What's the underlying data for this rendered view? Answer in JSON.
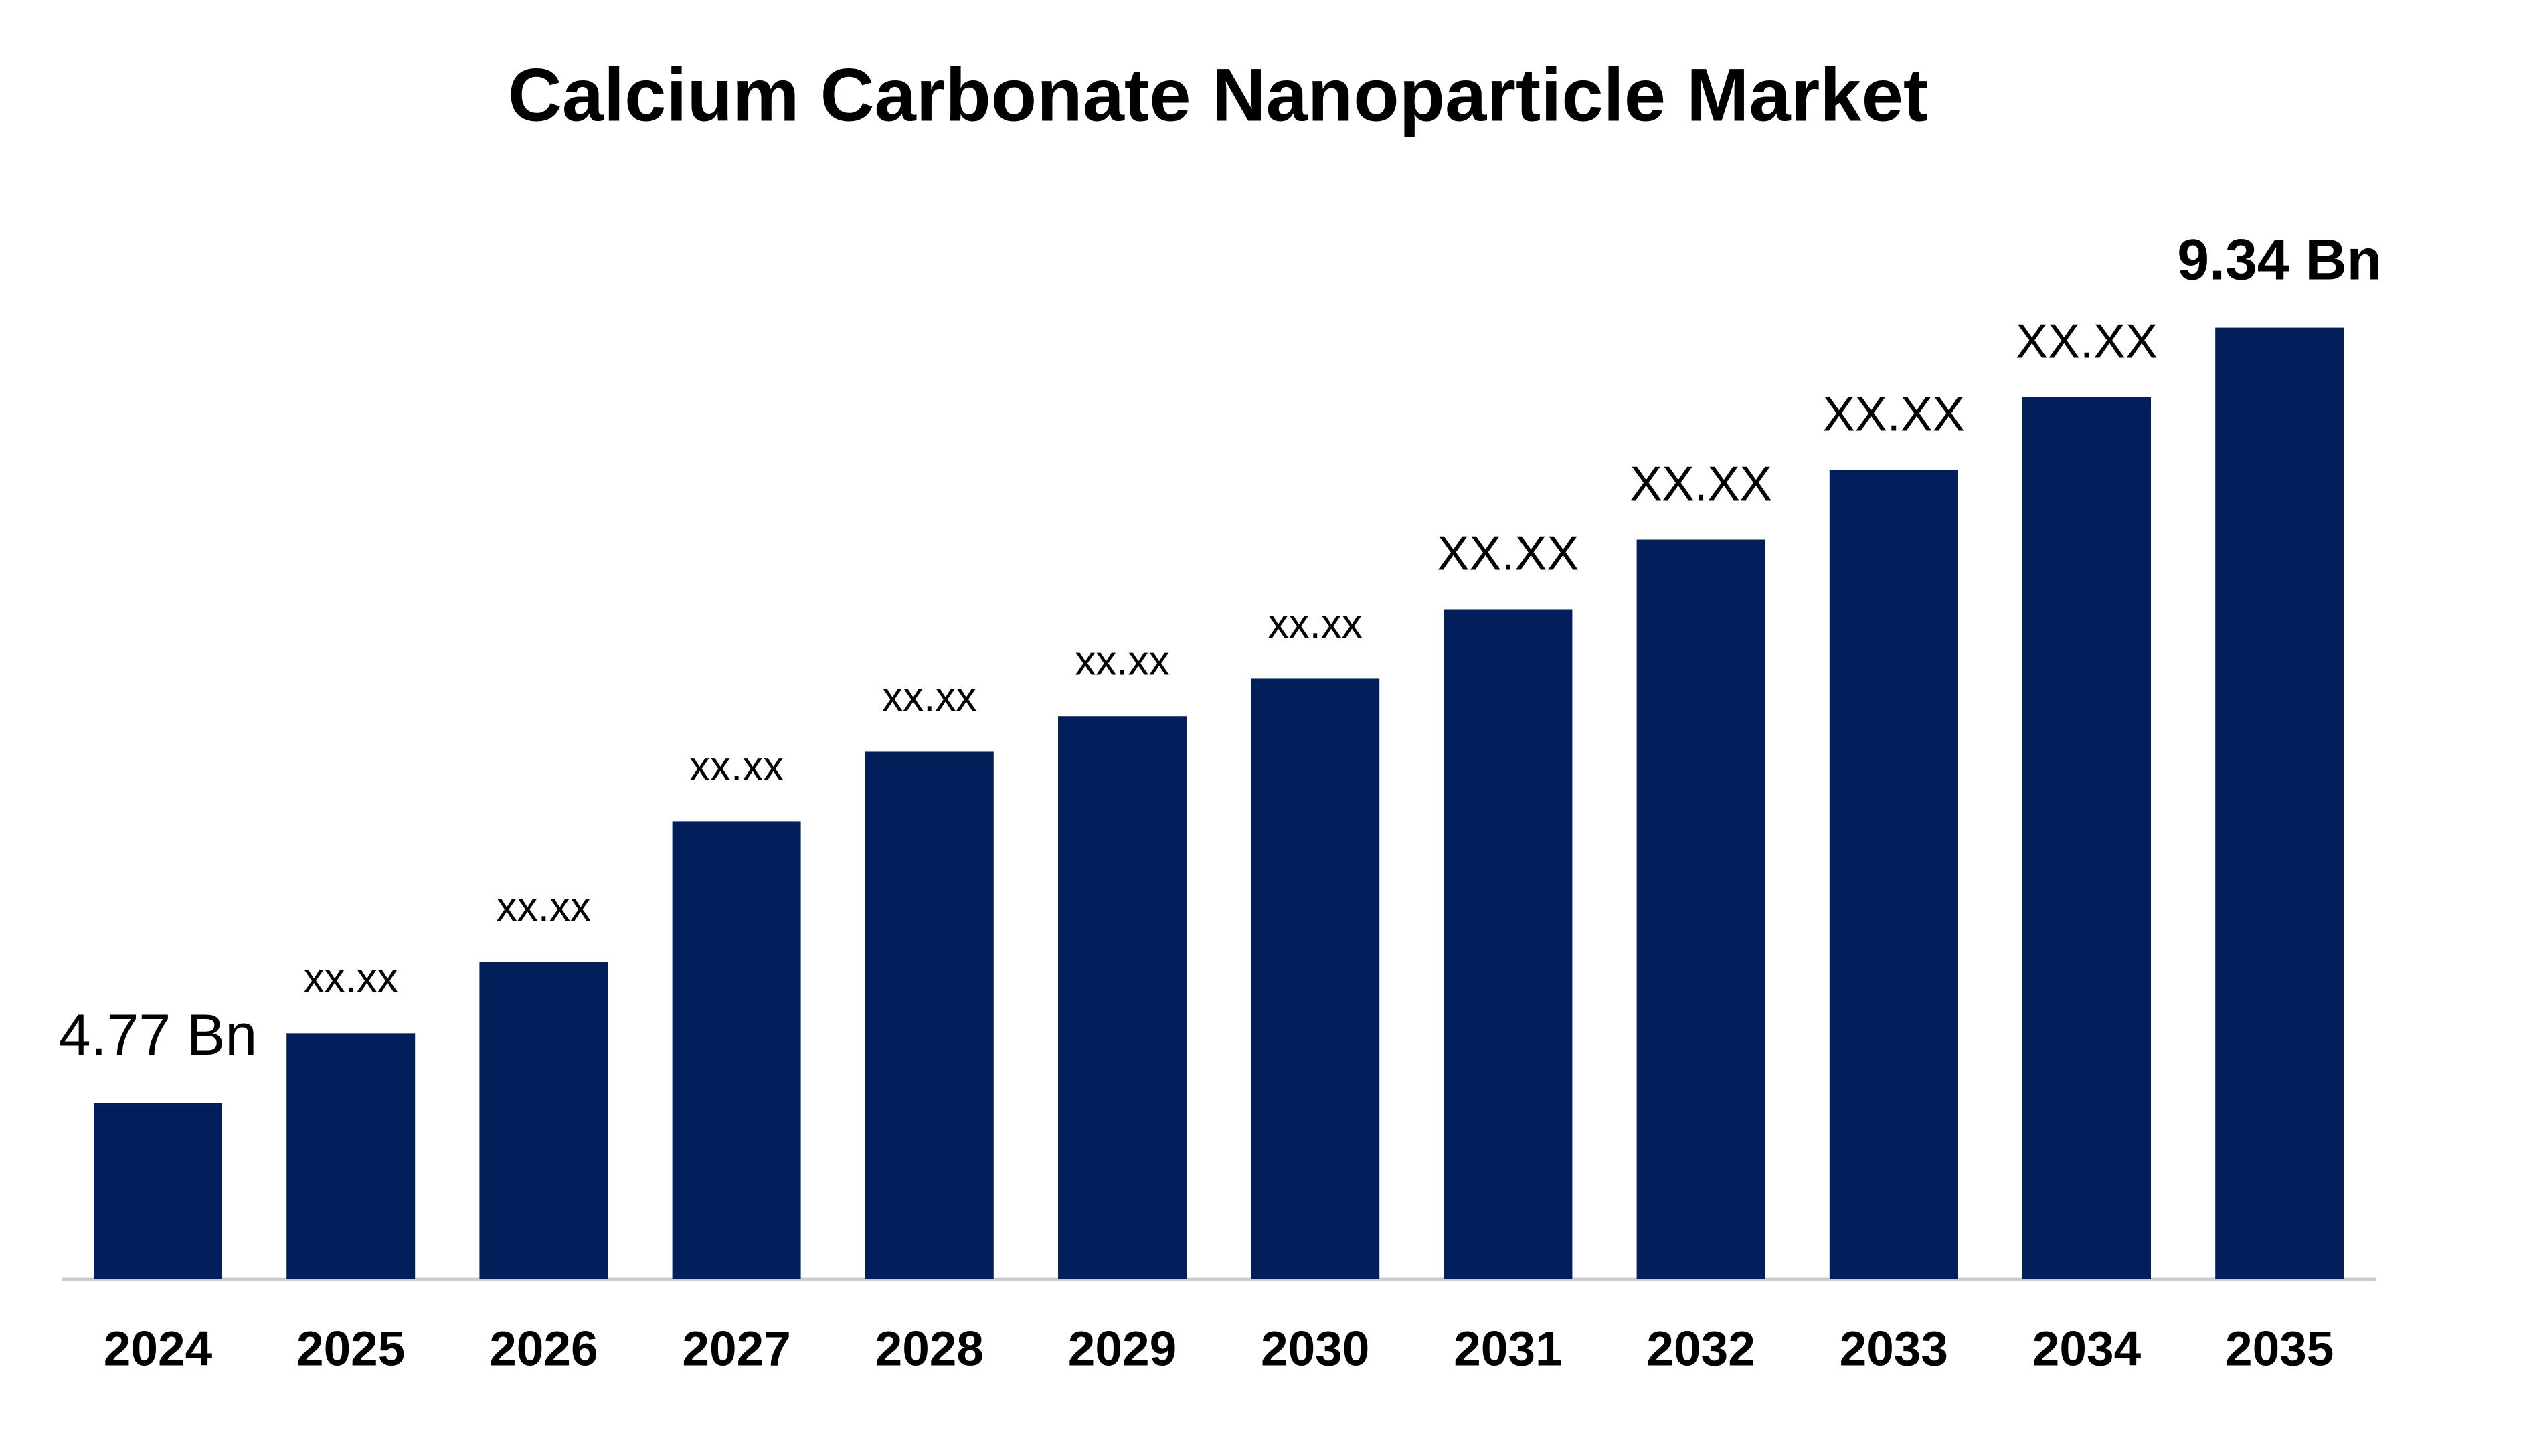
{
  "chart_data": {
    "type": "bar",
    "title": "Calcium Carbonate Nanoparticle Market",
    "categories": [
      "2024",
      "2025",
      "2026",
      "2027",
      "2028",
      "2029",
      "2030",
      "2031",
      "2032",
      "2033",
      "2034",
      "2035"
    ],
    "values": [
      4.77,
      5.18,
      5.6,
      6.43,
      6.84,
      7.05,
      7.27,
      7.68,
      8.09,
      8.5,
      8.93,
      9.34
    ],
    "value_labels": [
      "4.77 Bn",
      "xx.xx",
      "xx.xx",
      "xx.xx",
      "xx.xx",
      "xx.xx",
      "xx.xx",
      "XX.XX",
      "XX.XX",
      "XX.XX",
      "XX.XX",
      "9.34 Bn"
    ],
    "color": "#021f5c",
    "ylim": [
      3.73,
      9.93
    ]
  }
}
